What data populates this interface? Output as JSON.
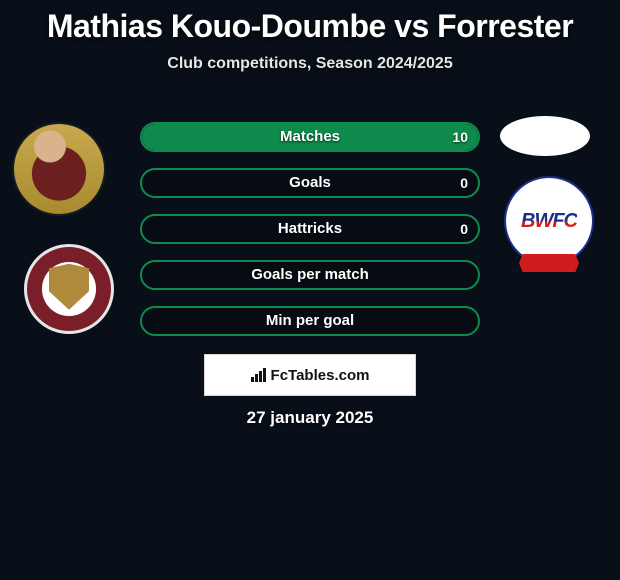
{
  "header": {
    "title": "Mathias Kouo-Doumbe vs Forrester",
    "subtitle": "Club competitions, Season 2024/2025"
  },
  "stats": {
    "bar_border_color": "#0e8a4c",
    "bar_fill_color": "#0e8a4c",
    "bar_bg_color": "rgba(0,0,0,0.15)",
    "label_fontsize": 15,
    "rows": [
      {
        "label": "Matches",
        "left": "",
        "right": "10",
        "left_pct": 0,
        "right_pct": 100
      },
      {
        "label": "Goals",
        "left": "",
        "right": "0",
        "left_pct": 0,
        "right_pct": 0
      },
      {
        "label": "Hattricks",
        "left": "",
        "right": "0",
        "left_pct": 0,
        "right_pct": 0
      },
      {
        "label": "Goals per match",
        "left": "",
        "right": "",
        "left_pct": 0,
        "right_pct": 0
      },
      {
        "label": "Min per goal",
        "left": "",
        "right": "",
        "left_pct": 0,
        "right_pct": 0
      }
    ]
  },
  "players": {
    "left_name": "Mathias Kouo-Doumbe",
    "right_name": "Forrester",
    "right_club_abbr": "BWFC"
  },
  "brand": {
    "text": "FcTables.com"
  },
  "date": "27 january 2025",
  "colors": {
    "background": "#090f18",
    "text": "#ffffff",
    "accent_green": "#0e8a4c",
    "club_right_blue": "#1a2f8a",
    "club_right_red": "#d01c1c"
  }
}
